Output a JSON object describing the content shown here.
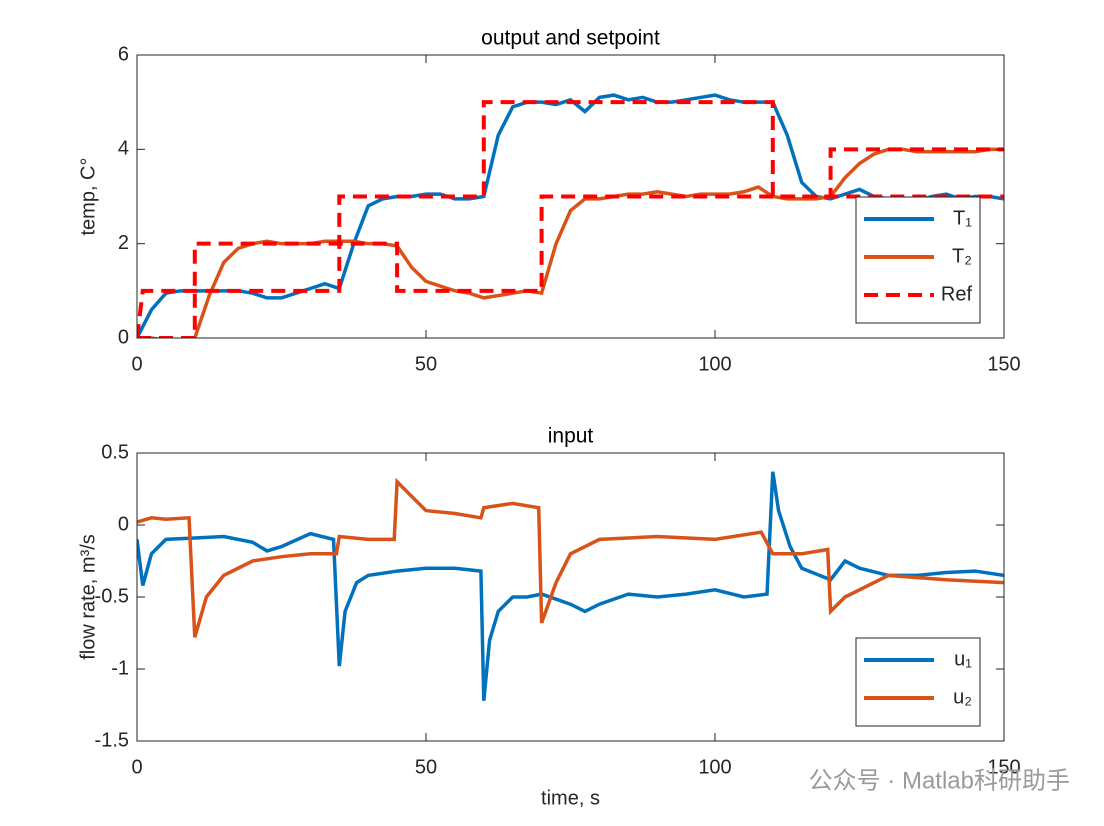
{
  "chart_data": [
    {
      "type": "line",
      "title": "output and setpoint",
      "ylabel": "temp, C°",
      "x": [
        0,
        2.5,
        5,
        7.5,
        10,
        12.5,
        15,
        17.5,
        20,
        22.5,
        25,
        27.5,
        30,
        32.5,
        35,
        37.5,
        40,
        42.5,
        45,
        47.5,
        50,
        52.5,
        55,
        57.5,
        60,
        62.5,
        65,
        67.5,
        70,
        72.5,
        75,
        77.5,
        80,
        82.5,
        85,
        87.5,
        90,
        92.5,
        95,
        97.5,
        100,
        102.5,
        105,
        107.5,
        110,
        112.5,
        115,
        117.5,
        120,
        122.5,
        125,
        127.5,
        130,
        132.5,
        135,
        137.5,
        140,
        142.5,
        145,
        147.5,
        150
      ],
      "series": [
        {
          "name": "T₁",
          "color": "#0072BD",
          "dash": false,
          "values": [
            0,
            0.6,
            0.95,
            1.0,
            1.0,
            1.0,
            1.0,
            1.0,
            0.95,
            0.85,
            0.85,
            0.95,
            1.05,
            1.15,
            1.05,
            2.0,
            2.8,
            2.95,
            3.0,
            3.0,
            3.05,
            3.05,
            2.95,
            2.95,
            3.0,
            4.3,
            4.9,
            5.0,
            5.0,
            4.95,
            5.05,
            4.8,
            5.1,
            5.15,
            5.05,
            5.1,
            5.0,
            5.0,
            5.05,
            5.1,
            5.15,
            5.05,
            5.0,
            5.0,
            5.0,
            4.3,
            3.3,
            3.0,
            2.95,
            3.05,
            3.15,
            3.0,
            2.95,
            2.95,
            2.9,
            3.0,
            3.05,
            2.95,
            3.0,
            3.0,
            2.95
          ]
        },
        {
          "name": "T₂",
          "color": "#D95319",
          "dash": false,
          "values": [
            0,
            0,
            -0.05,
            -0.05,
            0,
            0.9,
            1.6,
            1.9,
            2.0,
            2.05,
            2.0,
            2.0,
            2.0,
            2.05,
            2.05,
            2.05,
            2.0,
            2.0,
            1.95,
            1.5,
            1.2,
            1.1,
            1.0,
            0.95,
            0.85,
            0.9,
            0.95,
            1.0,
            0.95,
            2.0,
            2.7,
            2.95,
            2.95,
            3.0,
            3.05,
            3.05,
            3.1,
            3.05,
            3.0,
            3.05,
            3.05,
            3.05,
            3.1,
            3.2,
            3.0,
            2.95,
            2.95,
            2.95,
            3.0,
            3.4,
            3.7,
            3.9,
            4.0,
            4.0,
            3.95,
            3.95,
            3.95,
            3.95,
            3.95,
            4.0,
            4.0
          ]
        },
        {
          "name": "Ref",
          "color": "#FF0000",
          "dash": true,
          "x": [
            0,
            1,
            35,
            35,
            60,
            60,
            110,
            110,
            150
          ],
          "values": [
            0,
            1,
            1,
            3,
            3,
            5,
            5,
            3,
            3
          ]
        },
        {
          "color": "#FF0000",
          "dash": true,
          "x": [
            0,
            10,
            10,
            45,
            45,
            70,
            70,
            120,
            120,
            150
          ],
          "values": [
            0,
            0,
            2,
            2,
            1,
            1,
            3,
            3,
            4,
            4
          ]
        }
      ],
      "xlim": [
        0,
        150
      ],
      "xticks": [
        0,
        50,
        100,
        150
      ],
      "ylim": [
        0,
        6
      ],
      "yticks": [
        0,
        2,
        4,
        6
      ],
      "legend": "lower right"
    },
    {
      "type": "line",
      "title": "input",
      "xlabel": "time, s",
      "ylabel": "flow rate, m³/s",
      "series": [
        {
          "name": "u₁",
          "color": "#0072BD",
          "dash": false,
          "x": [
            0,
            1,
            2.5,
            5,
            10,
            15,
            20,
            22.5,
            25,
            30,
            34,
            35,
            36,
            38,
            40,
            45,
            50,
            55,
            59.5,
            60,
            61,
            62.5,
            65,
            67.5,
            70,
            75,
            77.5,
            80,
            85,
            90,
            95,
            100,
            105,
            109,
            110,
            111,
            113,
            115,
            120,
            122.5,
            125,
            130,
            135,
            140,
            145,
            150
          ],
          "values": [
            -0.1,
            -0.42,
            -0.2,
            -0.1,
            -0.09,
            -0.08,
            -0.12,
            -0.18,
            -0.15,
            -0.06,
            -0.1,
            -0.98,
            -0.6,
            -0.4,
            -0.35,
            -0.32,
            -0.3,
            -0.3,
            -0.32,
            -1.22,
            -0.8,
            -0.6,
            -0.5,
            -0.5,
            -0.48,
            -0.55,
            -0.6,
            -0.55,
            -0.48,
            -0.5,
            -0.48,
            -0.45,
            -0.5,
            -0.48,
            0.37,
            0.1,
            -0.15,
            -0.3,
            -0.38,
            -0.25,
            -0.3,
            -0.35,
            -0.35,
            -0.33,
            -0.32,
            -0.35
          ]
        },
        {
          "name": "u₂",
          "color": "#D95319",
          "dash": false,
          "x": [
            0,
            2.5,
            5,
            9,
            10,
            12,
            15,
            20,
            25,
            30,
            34.5,
            35,
            40,
            44.5,
            45,
            47.5,
            50,
            55,
            59.5,
            60,
            65,
            69.5,
            70,
            72.5,
            75,
            80,
            90,
            100,
            108,
            110,
            115,
            119.5,
            120,
            122.5,
            125,
            130,
            140,
            150
          ],
          "values": [
            0.02,
            0.05,
            0.04,
            0.05,
            -0.78,
            -0.5,
            -0.35,
            -0.25,
            -0.22,
            -0.2,
            -0.2,
            -0.08,
            -0.1,
            -0.1,
            0.3,
            0.2,
            0.1,
            0.08,
            0.05,
            0.12,
            0.15,
            0.12,
            -0.68,
            -0.4,
            -0.2,
            -0.1,
            -0.08,
            -0.1,
            -0.05,
            -0.2,
            -0.2,
            -0.17,
            -0.6,
            -0.5,
            -0.45,
            -0.35,
            -0.38,
            -0.4
          ]
        }
      ],
      "xlim": [
        0,
        150
      ],
      "xticks": [
        0,
        50,
        100,
        150
      ],
      "ylim": [
        -1.5,
        0.5
      ],
      "yticks": [
        -1.5,
        -1,
        -0.5,
        0,
        0.5
      ],
      "legend": "lower right"
    }
  ],
  "watermark": "公众号 · Matlab科研助手"
}
